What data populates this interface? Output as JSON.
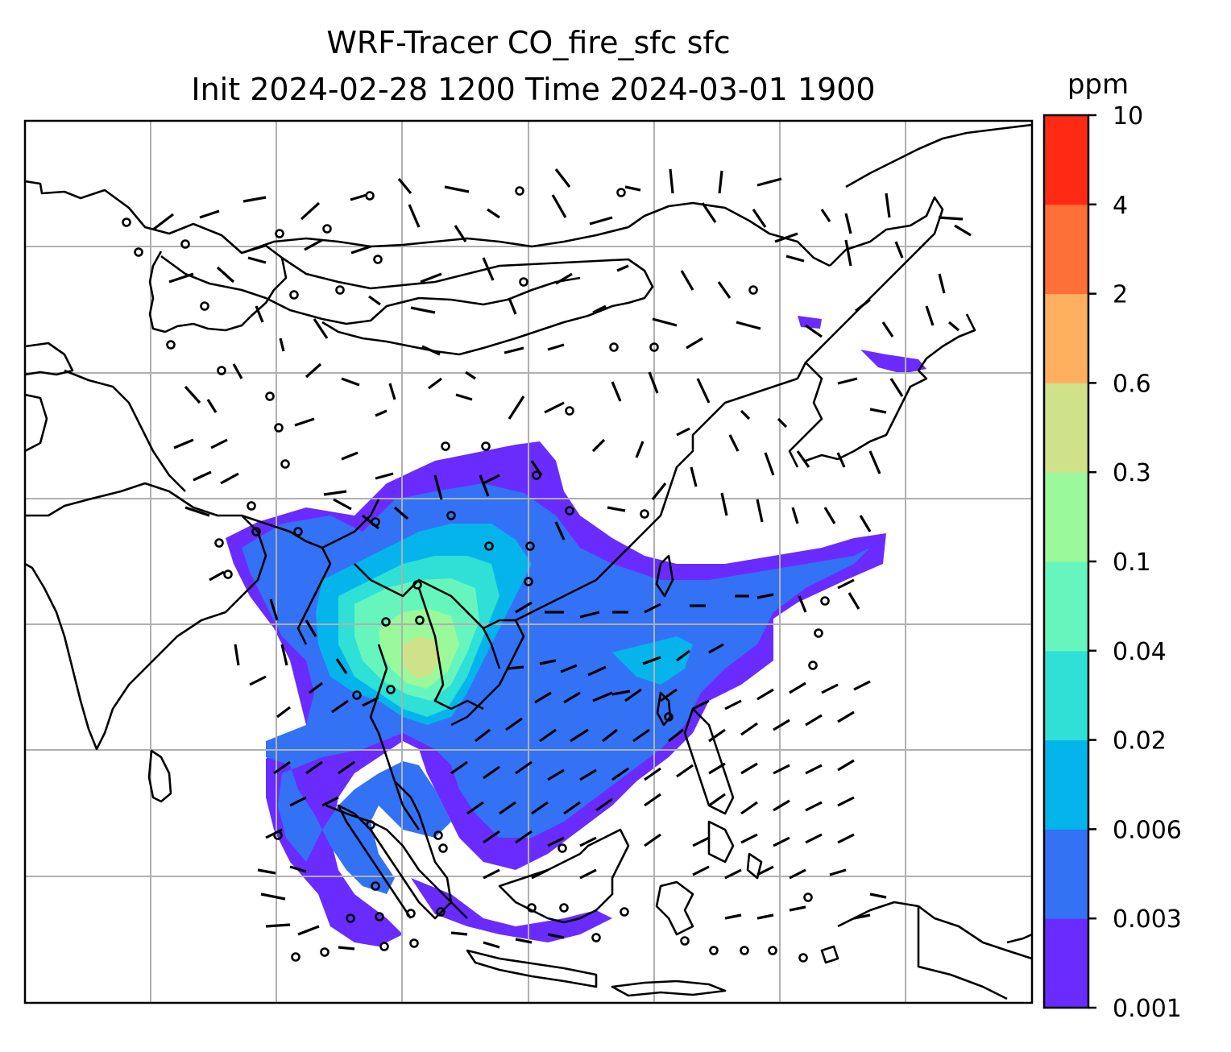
{
  "title": {
    "line1": "WRF-Tracer CO_fire_sfc sfc",
    "line2": "Init 2024-02-28 1200 Time 2024-03-01 1900"
  },
  "colorbar": {
    "unit": "ppm",
    "levels": [
      "0.001",
      "0.003",
      "0.006",
      "0.02",
      "0.04",
      "0.1",
      "0.3",
      "0.6",
      "2",
      "4",
      "10"
    ],
    "colors": [
      "#6a2bff",
      "#3372f5",
      "#06b4ec",
      "#2ee0d5",
      "#66f6bd",
      "#9af99b",
      "#cfe28a",
      "#feb060",
      "#ff7038",
      "#ff2a14"
    ]
  },
  "map": {
    "variable": "CO_fire_sfc",
    "background": "#ffffff",
    "coastline_color": "#000000",
    "grid": true,
    "wind_barbs": true
  }
}
